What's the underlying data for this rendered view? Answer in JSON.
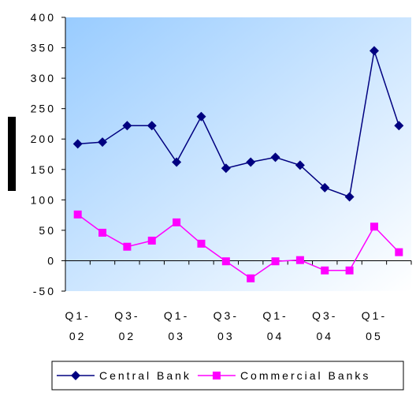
{
  "chart_data": {
    "type": "line",
    "categories": [
      "Q1-02",
      null,
      "Q3-02",
      null,
      "Q1-03",
      null,
      "Q3-03",
      null,
      "Q1-04",
      null,
      "Q3-04",
      null,
      "Q1-05",
      null
    ],
    "series": [
      {
        "name": "Central Bank",
        "color": "#000080",
        "marker": "diamond",
        "values": [
          192,
          195,
          222,
          222,
          162,
          237,
          152,
          162,
          170,
          157,
          120,
          105,
          345,
          222
        ]
      },
      {
        "name": "Commercial Banks",
        "color": "#ff00ff",
        "marker": "square",
        "values": [
          76,
          46,
          23,
          33,
          63,
          28,
          -1,
          -29,
          -1,
          1,
          -16,
          -16,
          56,
          14
        ]
      }
    ],
    "ylim": [
      -50,
      400
    ],
    "yticks": [
      -50,
      0,
      50,
      100,
      150,
      200,
      250,
      300,
      350,
      400
    ],
    "legend": "bottom"
  }
}
